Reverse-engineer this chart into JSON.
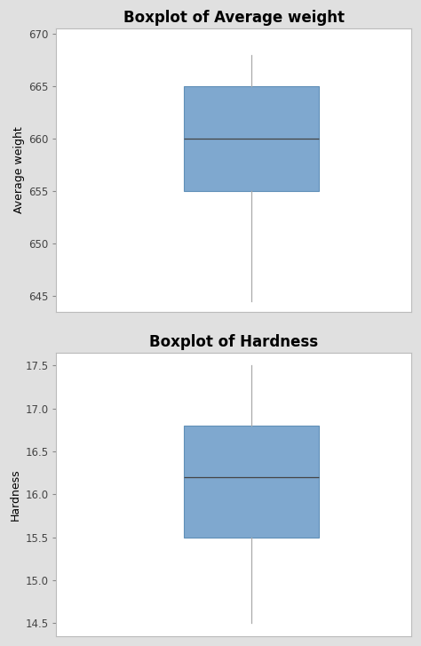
{
  "plot1": {
    "title": "Boxplot of Average weight",
    "ylabel": "Average weight",
    "ylim": [
      643.5,
      670.5
    ],
    "yticks": [
      645,
      650,
      655,
      660,
      665,
      670
    ],
    "box_stats": {
      "whislo": 644.5,
      "q1": 655.0,
      "med": 660.0,
      "q3": 665.0,
      "whishi": 668.0,
      "fliers": []
    },
    "box_color": "#7fa8cf",
    "box_edge_color": "#6090b8",
    "whisker_color": "#aaaaaa",
    "median_color": "#444444",
    "cap_color": "#aaaaaa"
  },
  "plot2": {
    "title": "Boxplot of Hardness",
    "ylabel": "Hardness",
    "ylim": [
      14.35,
      17.65
    ],
    "yticks": [
      14.5,
      15.0,
      15.5,
      16.0,
      16.5,
      17.0,
      17.5
    ],
    "box_stats": {
      "whislo": 14.5,
      "q1": 15.5,
      "med": 16.2,
      "q3": 16.8,
      "whishi": 17.5,
      "fliers": []
    },
    "box_color": "#7fa8cf",
    "box_edge_color": "#6090b8",
    "whisker_color": "#aaaaaa",
    "median_color": "#444444",
    "cap_color": "#aaaaaa"
  },
  "background_color": "#e0e0e0",
  "plot_background_color": "#ffffff",
  "title_fontsize": 12,
  "label_fontsize": 9,
  "tick_fontsize": 8.5,
  "figure_width": 4.74,
  "figure_height": 7.27,
  "dpi": 100
}
